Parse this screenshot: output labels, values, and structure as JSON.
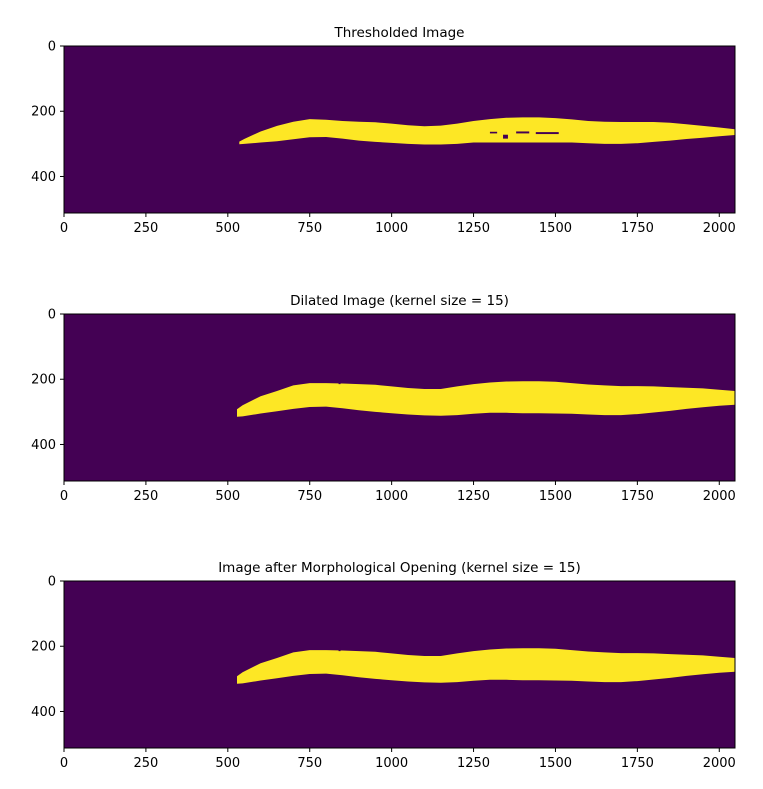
{
  "colors": {
    "background": "#440154",
    "foreground": "#fde725",
    "axis": "#000000"
  },
  "chart_data": [
    {
      "type": "heatmap",
      "title": "Thresholded Image",
      "xlabel": "",
      "ylabel": "",
      "xlim": [
        0,
        2048
      ],
      "ylim": [
        512,
        0
      ],
      "xticks": [
        "0",
        "250",
        "500",
        "750",
        "1000",
        "1250",
        "1500",
        "1750",
        "2000"
      ],
      "yticks": [
        "0",
        "200",
        "400"
      ],
      "colormap": "viridis",
      "values": [
        0,
        1
      ],
      "region": {
        "x": [
          535,
          550,
          600,
          650,
          700,
          750,
          800,
          850,
          900,
          950,
          1000,
          1050,
          1100,
          1150,
          1200,
          1250,
          1300,
          1350,
          1400,
          1450,
          1500,
          1550,
          1600,
          1650,
          1700,
          1750,
          1800,
          1850,
          1900,
          1950,
          2000,
          2048
        ],
        "top": [
          293,
          285,
          262,
          245,
          232,
          224,
          226,
          230,
          232,
          234,
          238,
          243,
          246,
          244,
          238,
          230,
          224,
          220,
          219,
          219,
          221,
          225,
          230,
          232,
          233,
          233,
          233,
          235,
          240,
          245,
          250,
          255
        ],
        "bottom": [
          301,
          300,
          296,
          292,
          286,
          280,
          279,
          284,
          290,
          294,
          297,
          300,
          302,
          302,
          300,
          296,
          296,
          296,
          296,
          296,
          296,
          296,
          298,
          300,
          300,
          298,
          294,
          290,
          285,
          281,
          277,
          273
        ]
      },
      "holes": [
        {
          "x": 1340,
          "y": 272,
          "w": 15,
          "h": 12
        },
        {
          "x": 1380,
          "y": 262,
          "w": 40,
          "h": 6
        },
        {
          "x": 1440,
          "y": 264,
          "w": 70,
          "h": 6
        },
        {
          "x": 1300,
          "y": 263,
          "w": 22,
          "h": 5
        }
      ]
    },
    {
      "type": "heatmap",
      "title": "Dilated Image (kernel size = 15)",
      "xlabel": "",
      "ylabel": "",
      "xlim": [
        0,
        2048
      ],
      "ylim": [
        512,
        0
      ],
      "xticks": [
        "0",
        "250",
        "500",
        "750",
        "1000",
        "1250",
        "1500",
        "1750",
        "2000"
      ],
      "yticks": [
        "0",
        "200",
        "400"
      ],
      "colormap": "viridis",
      "values": [
        0,
        1
      ],
      "region": {
        "x": [
          528,
          545,
          600,
          650,
          700,
          750,
          800,
          850,
          900,
          950,
          1000,
          1050,
          1100,
          1150,
          1200,
          1250,
          1300,
          1350,
          1400,
          1450,
          1500,
          1550,
          1600,
          1650,
          1700,
          1750,
          1800,
          1850,
          1900,
          1950,
          2000,
          2048
        ],
        "top": [
          292,
          280,
          252,
          236,
          219,
          212,
          212,
          213,
          215,
          217,
          222,
          227,
          230,
          230,
          222,
          215,
          210,
          207,
          206,
          206,
          208,
          212,
          216,
          219,
          221,
          221,
          222,
          224,
          226,
          228,
          232,
          236
        ],
        "bottom": [
          315,
          314,
          305,
          298,
          291,
          285,
          284,
          289,
          295,
          300,
          304,
          308,
          311,
          312,
          310,
          306,
          303,
          303,
          304,
          304,
          305,
          306,
          308,
          310,
          310,
          307,
          302,
          297,
          291,
          286,
          281,
          278
        ]
      },
      "holes": [
        {
          "x": 838,
          "y": 205,
          "w": 6,
          "h": 10
        }
      ]
    },
    {
      "type": "heatmap",
      "title": "Image after Morphological Opening (kernel size = 15)",
      "xlabel": "",
      "ylabel": "",
      "xlim": [
        0,
        2048
      ],
      "ylim": [
        512,
        0
      ],
      "xticks": [
        "0",
        "250",
        "500",
        "750",
        "1000",
        "1250",
        "1500",
        "1750",
        "2000"
      ],
      "yticks": [
        "0",
        "200",
        "400"
      ],
      "colormap": "viridis",
      "values": [
        0,
        1
      ],
      "region": {
        "x": [
          528,
          545,
          600,
          650,
          700,
          750,
          800,
          850,
          900,
          950,
          1000,
          1050,
          1100,
          1150,
          1200,
          1250,
          1300,
          1350,
          1400,
          1450,
          1500,
          1550,
          1600,
          1650,
          1700,
          1750,
          1800,
          1850,
          1900,
          1950,
          2000,
          2048
        ],
        "top": [
          292,
          280,
          252,
          236,
          219,
          212,
          212,
          213,
          215,
          217,
          222,
          227,
          230,
          230,
          222,
          215,
          210,
          207,
          206,
          206,
          208,
          212,
          216,
          219,
          221,
          221,
          222,
          224,
          226,
          228,
          232,
          236
        ],
        "bottom": [
          315,
          314,
          305,
          298,
          291,
          285,
          284,
          289,
          295,
          300,
          304,
          308,
          311,
          312,
          310,
          306,
          303,
          303,
          304,
          304,
          305,
          306,
          308,
          310,
          310,
          307,
          302,
          297,
          291,
          286,
          281,
          278
        ]
      },
      "holes": [
        {
          "x": 838,
          "y": 205,
          "w": 6,
          "h": 10
        }
      ]
    }
  ]
}
